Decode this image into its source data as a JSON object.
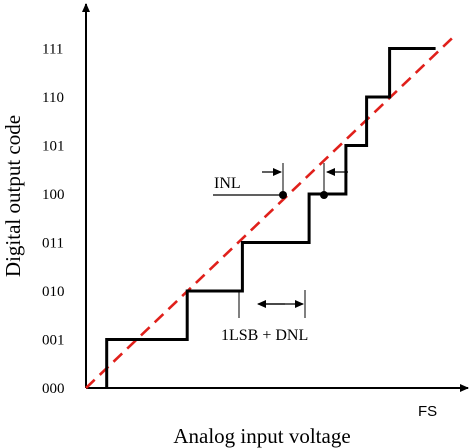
{
  "chart_data": {
    "type": "line",
    "xlabel": "Analog input voltage",
    "ylabel": "Digital output code",
    "x_end_label": "FS",
    "y_tick_labels": [
      "000",
      "001",
      "010",
      "011",
      "100",
      "101",
      "110",
      "111"
    ],
    "ideal_line": {
      "x": [
        0,
        8
      ],
      "y": [
        0,
        7.25
      ],
      "style": "dashed",
      "color": "#e0201b"
    },
    "transfer_steps": {
      "x": [
        0.45,
        0.45,
        2.2,
        2.2,
        3.4,
        3.4,
        4.85,
        4.85,
        5.65,
        5.65,
        6.1,
        6.1,
        6.6,
        6.6,
        7.0,
        7.0,
        7.6
      ],
      "y": [
        0,
        1,
        1,
        2,
        2,
        3,
        3,
        4,
        4,
        5,
        5,
        6,
        6,
        7,
        7,
        7,
        7
      ],
      "color": "#000000"
    },
    "annotations": [
      {
        "text": "INL"
      },
      {
        "text": "1LSB + DNL"
      }
    ],
    "xlim": [
      0,
      8.3
    ],
    "ylim": [
      0,
      7.6
    ],
    "grid": false,
    "legend": "none"
  },
  "colors": {
    "ideal": "#e0201b",
    "steps": "#000000",
    "axes": "#000000"
  }
}
